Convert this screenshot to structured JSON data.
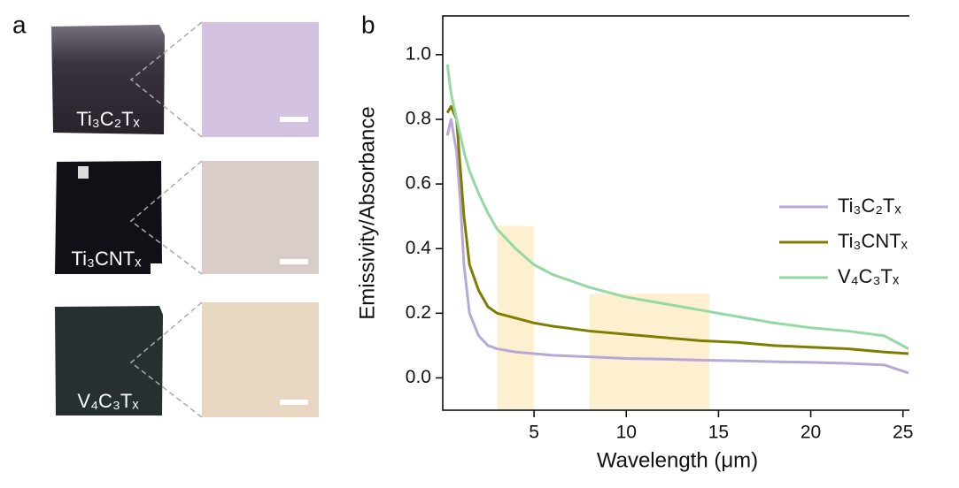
{
  "panel_labels": [
    "a",
    "b"
  ],
  "samples": [
    "Ti₃C₂Tₓ",
    "Ti₃CNTₓ",
    "V₄C₃Tₓ"
  ],
  "chart_data": {
    "type": "line",
    "x_label": "Wavelength (μm)",
    "y_label": "Emissivity/Absorbance",
    "x": [
      0.3,
      0.5,
      0.8,
      1,
      1.2,
      1.5,
      2,
      2.5,
      3,
      4,
      5,
      6,
      8,
      10,
      12,
      14,
      16,
      18,
      20,
      22,
      24,
      25.3
    ],
    "series": [
      {
        "name": "Ti₃C₂Tₓ",
        "color": "#b7a8d8",
        "values": [
          0.75,
          0.8,
          0.7,
          0.55,
          0.35,
          0.2,
          0.13,
          0.1,
          0.09,
          0.08,
          0.075,
          0.07,
          0.065,
          0.06,
          0.058,
          0.055,
          0.053,
          0.05,
          0.048,
          0.045,
          0.04,
          0.015
        ]
      },
      {
        "name": "Ti₃CNTₓ",
        "color": "#7f7d00",
        "values": [
          0.82,
          0.84,
          0.8,
          0.65,
          0.5,
          0.35,
          0.27,
          0.22,
          0.2,
          0.185,
          0.17,
          0.16,
          0.145,
          0.135,
          0.125,
          0.115,
          0.11,
          0.1,
          0.095,
          0.09,
          0.08,
          0.075
        ]
      },
      {
        "name": "V₄C₃Tₓ",
        "color": "#94d9a4",
        "values": [
          0.97,
          0.88,
          0.8,
          0.75,
          0.7,
          0.64,
          0.57,
          0.51,
          0.46,
          0.4,
          0.35,
          0.32,
          0.28,
          0.25,
          0.23,
          0.21,
          0.19,
          0.17,
          0.155,
          0.145,
          0.13,
          0.09
        ]
      }
    ],
    "bands": [
      {
        "x": [
          3,
          5
        ],
        "top": 0.47
      },
      {
        "x": [
          8,
          14.5
        ],
        "top": 0.26
      }
    ],
    "band_color": "#fdf0d0",
    "xlim": [
      0.05,
      25.35
    ],
    "ylim": [
      -0.1,
      1.12
    ],
    "xticks": [
      5,
      10,
      15,
      20,
      25
    ],
    "yticks": [
      {
        "value": 0,
        "label": "0.0"
      },
      {
        "value": 0.2,
        "label": "0.2"
      },
      {
        "value": 0.4,
        "label": "0.4"
      },
      {
        "value": 0.6,
        "label": "0.6"
      },
      {
        "value": 0.8,
        "label": "0.8"
      },
      {
        "value": 1,
        "label": "1.0"
      }
    ],
    "legend": "right"
  }
}
